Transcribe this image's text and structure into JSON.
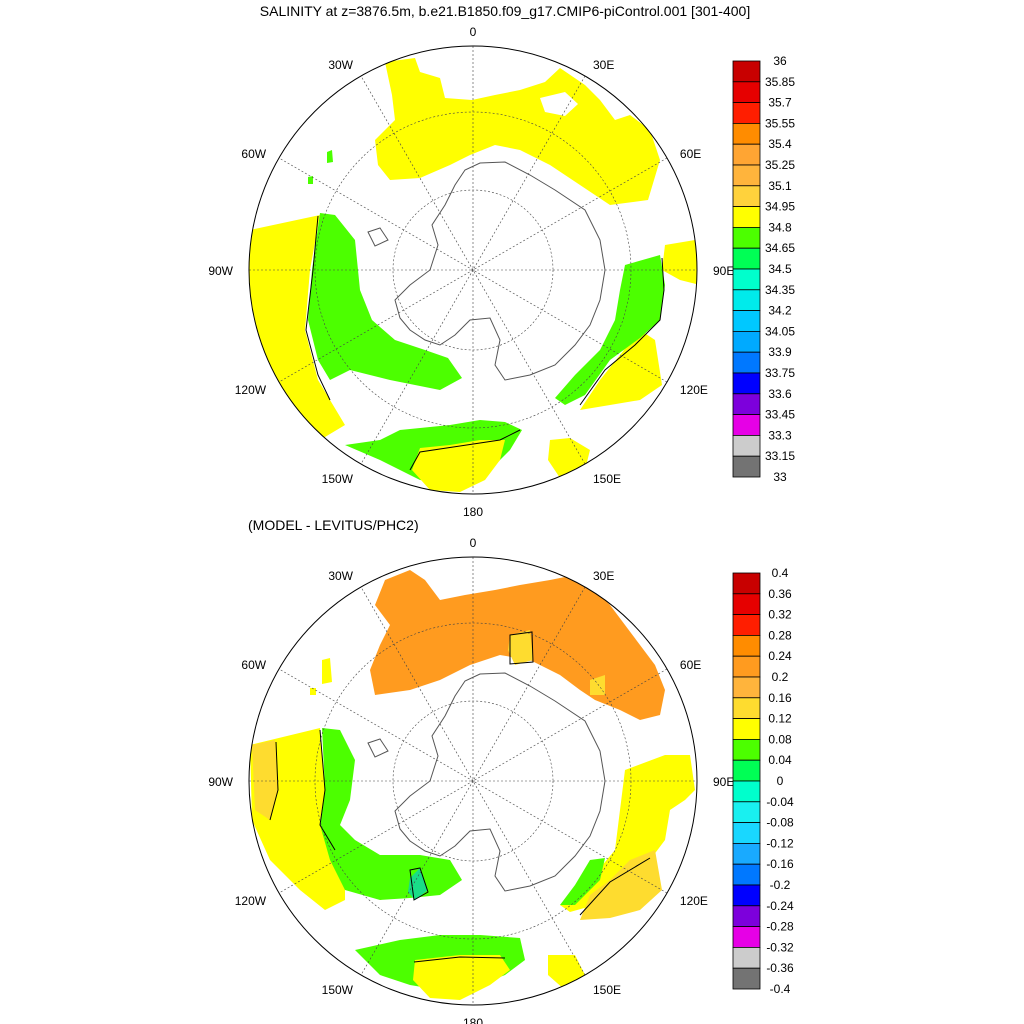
{
  "title": "SALINITY at z=3876.5m, b.e21.B1850.f09_g17.CMIP6-piControl.001 [301-400]",
  "subtitle": "(MODEL - LEVITUS/PHC2)",
  "lon_labels": [
    "0",
    "30E",
    "60E",
    "90E",
    "120E",
    "150E",
    "180",
    "150W",
    "120W",
    "90W",
    "60W",
    "30W"
  ],
  "colors": {
    "ocean_fill": [
      "#ffff00",
      "#4cff00",
      "#fedc2f",
      "#ff9b1f",
      "#19dd88"
    ],
    "coast_line": "#555555",
    "grid_line": "#444444",
    "contour_line": "#000000"
  },
  "panels": [
    {
      "name": "salinity",
      "colorbar": {
        "labels": [
          "36",
          "35.85",
          "35.7",
          "35.55",
          "35.4",
          "35.25",
          "35.1",
          "34.95",
          "34.8",
          "34.65",
          "34.5",
          "34.35",
          "34.2",
          "34.05",
          "33.9",
          "33.75",
          "33.6",
          "33.45",
          "33.3",
          "33.15",
          "33"
        ],
        "colors": [
          "#c80000",
          "#e60000",
          "#ff1e00",
          "#ff8c00",
          "#ffa533",
          "#ffb43c",
          "#ffd23c",
          "#ffff00",
          "#4cff00",
          "#00ff55",
          "#00ffcc",
          "#00ebeb",
          "#00c8ff",
          "#00aaff",
          "#0078ff",
          "#0000ff",
          "#7d00dc",
          "#e600e6",
          "#cccccc",
          "#737373"
        ]
      }
    },
    {
      "name": "difference",
      "colorbar": {
        "labels": [
          "0.4",
          "0.36",
          "0.32",
          "0.28",
          "0.24",
          "0.2",
          "0.16",
          "0.12",
          "0.08",
          "0.04",
          "0",
          "-0.04",
          "-0.08",
          "-0.12",
          "-0.16",
          "-0.2",
          "-0.24",
          "-0.28",
          "-0.32",
          "-0.36",
          "-0.4"
        ],
        "colors": [
          "#c80000",
          "#e60000",
          "#ff1e00",
          "#ff8c00",
          "#ff9b1f",
          "#ffb43c",
          "#fedc2f",
          "#ffff00",
          "#4cff00",
          "#00ff55",
          "#00ffcc",
          "#19f0f0",
          "#19d7ff",
          "#19aaff",
          "#0078ff",
          "#0000ff",
          "#7d00dc",
          "#e600e6",
          "#cccccc",
          "#737373"
        ]
      }
    }
  ]
}
